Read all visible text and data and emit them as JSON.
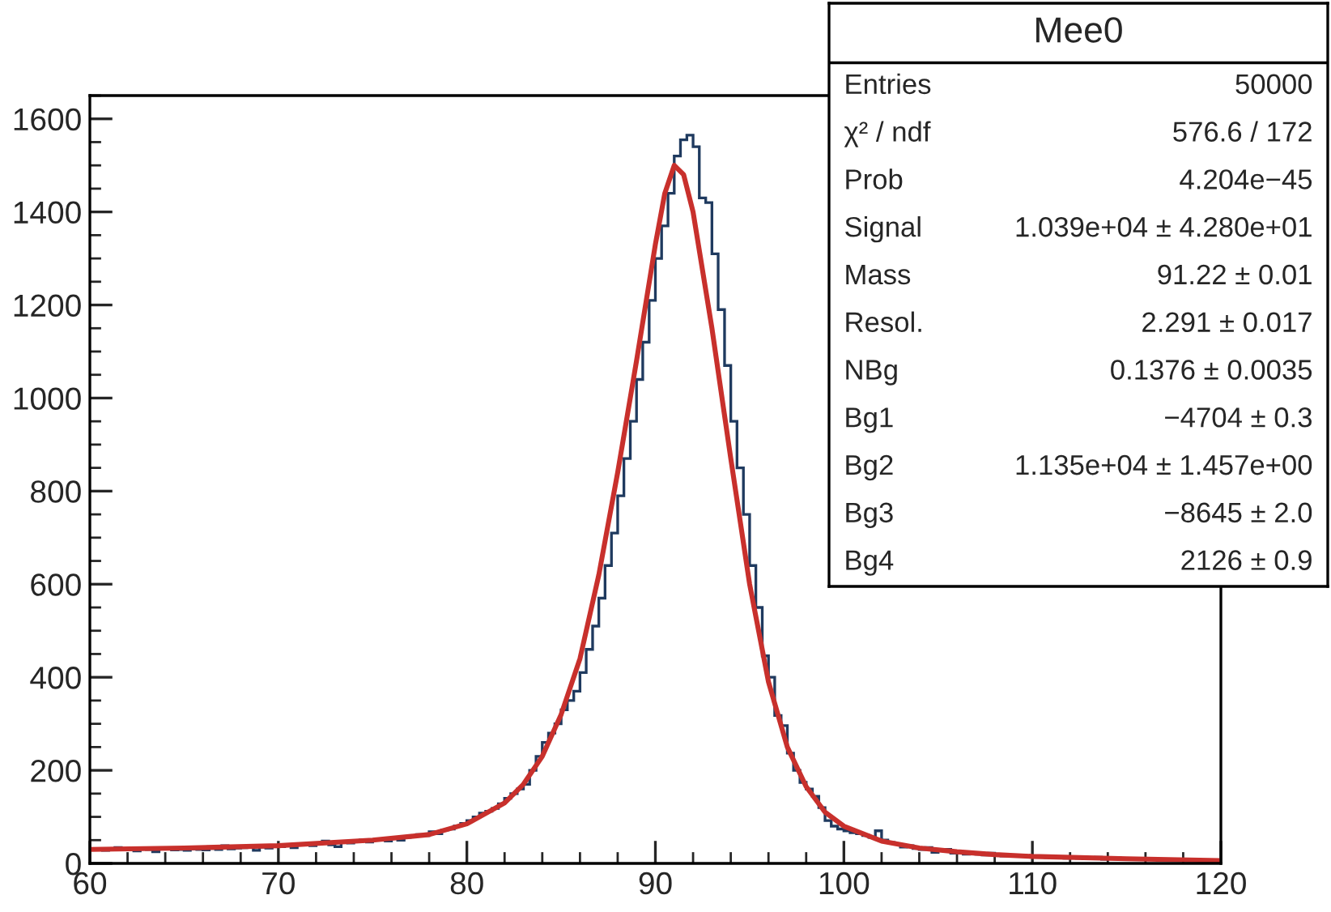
{
  "chart_data": {
    "type": "histogram",
    "xlim": [
      60,
      120
    ],
    "xticks": [
      60,
      70,
      80,
      90,
      100,
      110,
      120
    ],
    "ylim": [
      0,
      1650
    ],
    "yticks": [
      0,
      200,
      400,
      600,
      800,
      1000,
      1200,
      1400,
      1600
    ],
    "grid": false,
    "series": [
      {
        "color": "#1f3a5f",
        "bins": [
          60,
          60.33,
          60.67,
          61,
          61.33,
          61.67,
          62,
          62.33,
          62.67,
          63,
          63.33,
          63.67,
          64,
          64.33,
          64.67,
          65,
          65.33,
          65.67,
          66,
          66.33,
          66.67,
          67,
          67.33,
          67.67,
          68,
          68.33,
          68.67,
          69,
          69.33,
          69.67,
          70,
          70.33,
          70.67,
          71,
          71.33,
          71.67,
          72,
          72.33,
          72.67,
          73,
          73.33,
          73.67,
          74,
          74.33,
          74.67,
          75,
          75.33,
          75.67,
          76,
          76.33,
          76.67,
          77,
          77.33,
          77.67,
          78,
          78.33,
          78.67,
          79,
          79.33,
          79.67,
          80,
          80.33,
          80.67,
          81,
          81.33,
          81.67,
          82,
          82.33,
          82.67,
          83,
          83.33,
          83.67,
          84,
          84.33,
          84.67,
          85,
          85.33,
          85.67,
          86,
          86.33,
          86.67,
          87,
          87.33,
          87.67,
          88,
          88.33,
          88.67,
          89,
          89.33,
          89.67,
          90,
          90.33,
          90.67,
          91,
          91.33,
          91.67,
          92,
          92.33,
          92.67,
          93,
          93.33,
          93.67,
          94,
          94.33,
          94.67,
          95,
          95.33,
          95.67,
          96,
          96.33,
          96.67,
          97,
          97.33,
          97.67,
          98,
          98.33,
          98.67,
          99,
          99.33,
          99.67,
          100,
          100.33,
          100.67,
          101,
          101.33,
          101.67,
          102,
          102.33,
          102.67,
          103,
          103.33,
          103.67,
          104,
          104.33,
          104.67,
          105,
          105.33,
          105.67,
          106,
          106.33,
          106.67,
          107,
          107.33,
          107.67,
          108,
          108.33,
          108.67,
          109,
          109.33,
          109.67,
          110,
          110.33,
          110.67,
          111,
          111.33,
          111.67,
          112,
          112.33,
          112.67,
          113,
          113.33,
          113.67,
          114,
          114.33,
          114.67,
          115,
          115.33,
          115.67,
          116,
          116.33,
          116.67,
          117,
          117.33,
          117.67,
          118,
          118.33,
          118.67,
          119,
          119.33,
          119.67,
          120
        ],
        "values": [
          30,
          32,
          28,
          30,
          34,
          29,
          31,
          27,
          33,
          30,
          25,
          31,
          33,
          29,
          30,
          28,
          31,
          30,
          29,
          32,
          30,
          38,
          31,
          33,
          34,
          36,
          28,
          35,
          33,
          37,
          36,
          38,
          34,
          40,
          42,
          38,
          44,
          48,
          40,
          36,
          46,
          44,
          48,
          50,
          46,
          50,
          52,
          48,
          54,
          50,
          56,
          58,
          62,
          60,
          68,
          64,
          72,
          74,
          80,
          86,
          92,
          100,
          108,
          112,
          118,
          128,
          140,
          150,
          160,
          170,
          200,
          230,
          260,
          280,
          300,
          330,
          350,
          370,
          410,
          460,
          510,
          570,
          640,
          710,
          790,
          870,
          950,
          1040,
          1120,
          1210,
          1300,
          1370,
          1440,
          1520,
          1555,
          1565,
          1540,
          1430,
          1420,
          1310,
          1190,
          1070,
          950,
          850,
          750,
          640,
          550,
          446,
          400,
          318,
          296,
          237,
          200,
          174,
          160,
          144,
          120,
          92,
          80,
          74,
          70,
          66,
          64,
          60,
          56,
          70,
          50,
          45,
          42,
          35,
          38,
          32,
          30,
          34,
          24,
          28,
          30,
          22,
          24,
          20,
          22,
          20,
          18,
          22,
          19,
          16,
          18,
          15,
          17,
          14,
          14,
          15,
          13,
          12,
          13,
          11,
          12,
          11,
          10,
          11,
          13,
          9,
          10,
          12,
          9,
          9,
          10,
          11,
          8,
          9,
          7,
          8,
          7,
          9,
          6,
          8,
          7,
          6,
          7,
          6
        ]
      },
      {
        "type": "line",
        "color": "#c8302c",
        "x": [
          60,
          65,
          70,
          75,
          78,
          80,
          82,
          83,
          84,
          85,
          86,
          87,
          88,
          89,
          90,
          90.5,
          91,
          91.5,
          92,
          93,
          94,
          95,
          96,
          97,
          98,
          99,
          100,
          102,
          104,
          106,
          108,
          110,
          115,
          120
        ],
        "values": [
          30,
          33,
          38,
          50,
          62,
          85,
          130,
          170,
          230,
          320,
          440,
          620,
          840,
          1080,
          1330,
          1440,
          1500,
          1480,
          1400,
          1150,
          870,
          600,
          390,
          250,
          165,
          110,
          80,
          48,
          33,
          25,
          19,
          15,
          10,
          6
        ]
      }
    ],
    "annotations": [
      "Mee0",
      "Entries",
      "50000",
      "χ² / ndf",
      "576.6 / 172",
      "Prob",
      "4.204e−45",
      "Signal",
      "1.039e+04 ± 4.280e+01",
      "Mass",
      "91.22 ± 0.01",
      "Resol.",
      "2.291 ± 0.017",
      "NBg",
      "0.1376 ± 0.0035",
      "Bg1",
      "−4704 ± 0.3",
      "Bg2",
      "1.135e+04 ± 1.457e+00",
      "Bg3",
      "−8645 ± 2.0",
      "Bg4",
      "2126 ± 0.9"
    ]
  }
}
